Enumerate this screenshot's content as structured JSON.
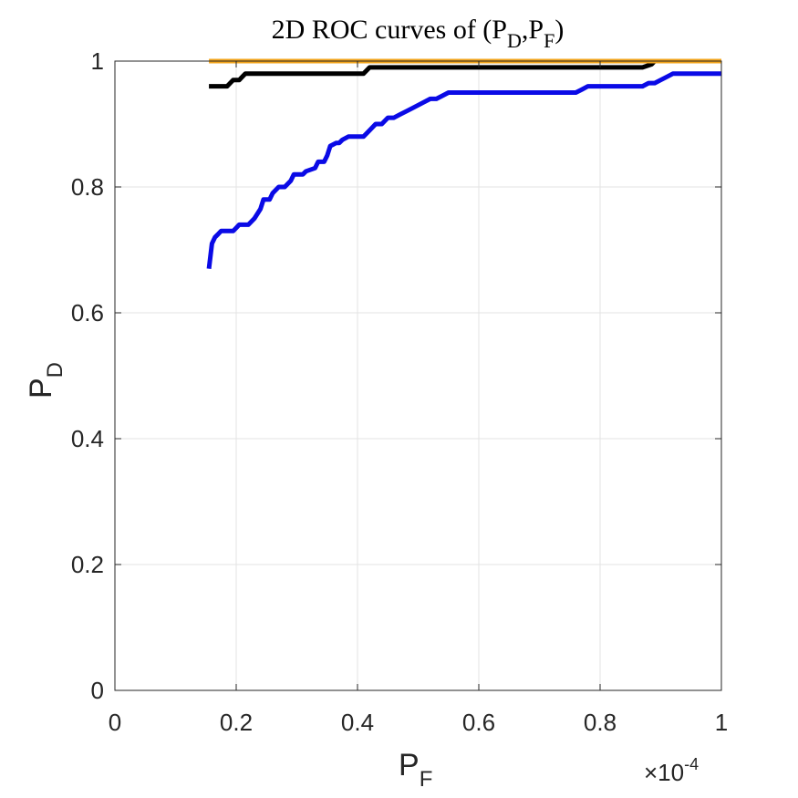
{
  "chart_data": {
    "type": "line",
    "title": {
      "prefix": "2D ROC curves of (P",
      "sub1": "D",
      "mid": ",P",
      "sub2": "F",
      "suffix": ")"
    },
    "xlabel": {
      "main": "P",
      "sub": "F"
    },
    "ylabel": {
      "main": "P",
      "sub": "D"
    },
    "x_exponent": {
      "base": "×10",
      "power": "-4"
    },
    "xlim": [
      0,
      1
    ],
    "ylim": [
      0,
      1
    ],
    "grid": true,
    "x_ticks": [
      {
        "value": 0,
        "label": "0"
      },
      {
        "value": 0.2,
        "label": "0.2"
      },
      {
        "value": 0.4,
        "label": "0.4"
      },
      {
        "value": 0.6,
        "label": "0.6"
      },
      {
        "value": 0.8,
        "label": "0.8"
      },
      {
        "value": 1,
        "label": "1"
      }
    ],
    "y_ticks": [
      {
        "value": 0,
        "label": "0"
      },
      {
        "value": 0.2,
        "label": "0.2"
      },
      {
        "value": 0.4,
        "label": "0.4"
      },
      {
        "value": 0.6,
        "label": "0.6"
      },
      {
        "value": 0.8,
        "label": "0.8"
      },
      {
        "value": 1,
        "label": "1"
      }
    ],
    "series": [
      {
        "name": "orange",
        "color": "#f2a41c",
        "x": [
          0.155,
          1.0
        ],
        "y": [
          1.0,
          1.0
        ]
      },
      {
        "name": "black",
        "color": "#000000",
        "x": [
          0.155,
          0.185,
          0.195,
          0.205,
          0.21,
          0.215,
          0.41,
          0.42,
          0.87,
          0.885,
          0.89
        ],
        "y": [
          0.96,
          0.96,
          0.97,
          0.97,
          0.975,
          0.98,
          0.98,
          0.99,
          0.99,
          0.995,
          1.0
        ]
      },
      {
        "name": "blue",
        "color": "#0a0ae6",
        "x": [
          0.155,
          0.16,
          0.165,
          0.17,
          0.175,
          0.18,
          0.195,
          0.2,
          0.205,
          0.22,
          0.23,
          0.24,
          0.245,
          0.255,
          0.26,
          0.27,
          0.28,
          0.29,
          0.295,
          0.31,
          0.315,
          0.33,
          0.335,
          0.345,
          0.35,
          0.355,
          0.365,
          0.37,
          0.375,
          0.385,
          0.4,
          0.41,
          0.42,
          0.43,
          0.44,
          0.45,
          0.46,
          0.47,
          0.48,
          0.49,
          0.5,
          0.51,
          0.52,
          0.53,
          0.54,
          0.55,
          0.56,
          0.6,
          0.7,
          0.76,
          0.77,
          0.78,
          0.87,
          0.88,
          0.89,
          0.9,
          0.91,
          0.92,
          1.0
        ],
        "y": [
          0.67,
          0.71,
          0.72,
          0.725,
          0.73,
          0.73,
          0.73,
          0.735,
          0.74,
          0.74,
          0.75,
          0.765,
          0.78,
          0.78,
          0.79,
          0.8,
          0.8,
          0.81,
          0.82,
          0.82,
          0.825,
          0.83,
          0.84,
          0.84,
          0.85,
          0.865,
          0.87,
          0.87,
          0.875,
          0.88,
          0.88,
          0.88,
          0.89,
          0.9,
          0.9,
          0.91,
          0.91,
          0.915,
          0.92,
          0.925,
          0.93,
          0.935,
          0.94,
          0.94,
          0.945,
          0.95,
          0.95,
          0.95,
          0.95,
          0.95,
          0.955,
          0.96,
          0.96,
          0.965,
          0.965,
          0.97,
          0.975,
          0.98,
          0.98
        ]
      }
    ]
  }
}
